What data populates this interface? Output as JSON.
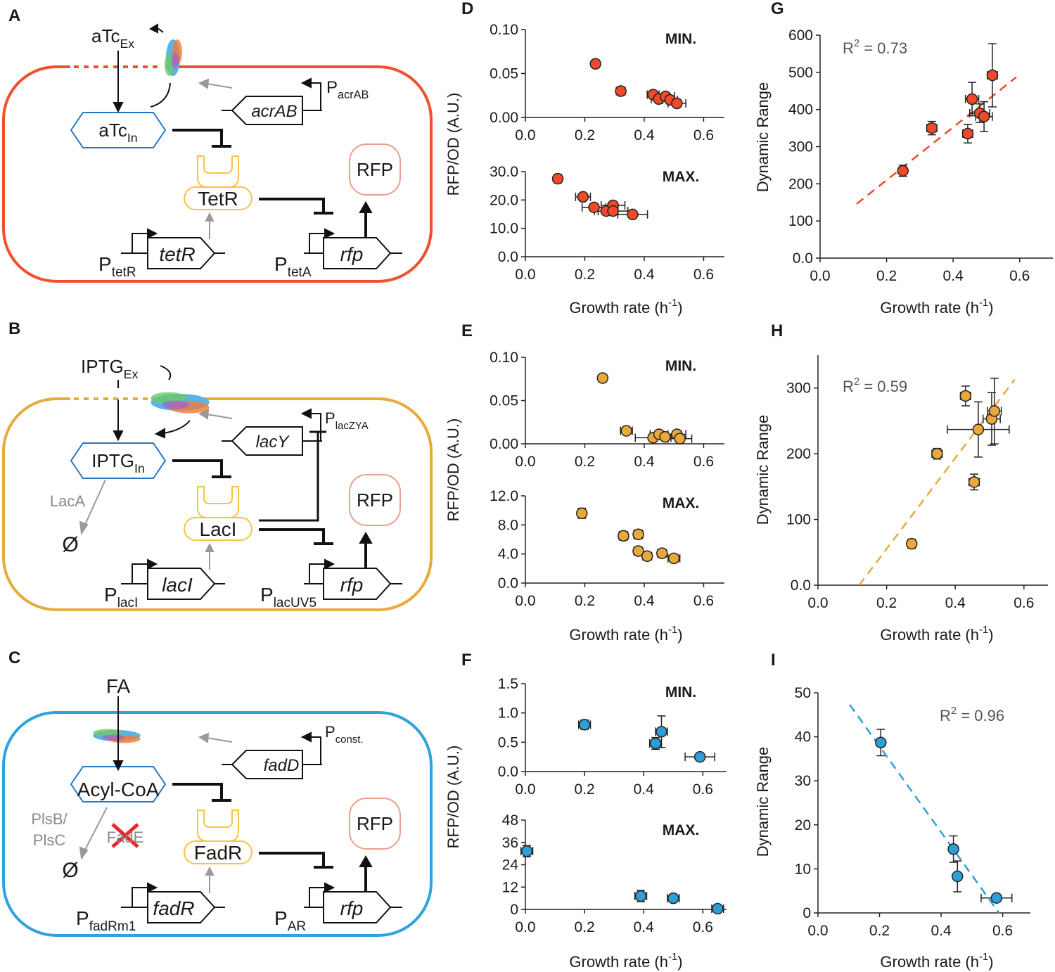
{
  "diagrams": [
    {
      "label": "A",
      "texts": [
        {
          "text": "aTc",
          "sub": "Ex"
        },
        {
          "text": "aTc",
          "sub": "In"
        },
        {
          "text": "TetR"
        },
        {
          "text": "RFP"
        },
        {
          "text": "P",
          "sub": "acrAB"
        },
        {
          "text": "acrAB"
        },
        {
          "text": "P",
          "sub": "tetR"
        },
        {
          "text": "tetR"
        },
        {
          "text": "P",
          "sub": "tetA"
        },
        {
          "text": "rfp"
        }
      ]
    },
    {
      "label": "B",
      "texts": [
        {
          "text": "IPTG",
          "sub": "Ex"
        },
        {
          "text": "IPTG",
          "sub": "In"
        },
        {
          "text": "LacI"
        },
        {
          "text": "RFP"
        },
        {
          "text": "P",
          "sub": "lacZYA"
        },
        {
          "text": "lacY"
        },
        {
          "text": "LacA"
        },
        {
          "text": "Ø"
        },
        {
          "text": "P",
          "sub": "lacI"
        },
        {
          "text": "lacI"
        },
        {
          "text": "P",
          "sub": "lacUV5"
        },
        {
          "text": "rfp"
        }
      ]
    },
    {
      "label": "C",
      "texts": [
        {
          "text": "FA"
        },
        {
          "text": "Acyl-CoA"
        },
        {
          "text": "FadR"
        },
        {
          "text": "RFP"
        },
        {
          "text": "P",
          "sub": "const."
        },
        {
          "text": "fadD"
        },
        {
          "text": "PlsB/"
        },
        {
          "text": "PlsC"
        },
        {
          "text": "FadE"
        },
        {
          "text": "Ø"
        },
        {
          "text": "P",
          "sub": "fadRm1"
        },
        {
          "text": "fadR"
        },
        {
          "text": "P",
          "sub": "AR"
        },
        {
          "text": "rfp"
        }
      ]
    }
  ],
  "chart_data": [
    {
      "type": "scatter",
      "panel_label": "D",
      "ylabel": "RFP/OD (A.U.)",
      "annotation": "MIN.",
      "color": "#f04a2a",
      "x": [
        0.236,
        0.321,
        0.43,
        0.449,
        0.472,
        0.487,
        0.51
      ],
      "values": [
        0.061,
        0.03,
        0.026,
        0.021,
        0.024,
        0.02,
        0.016
      ],
      "xerr": [
        0.012,
        0.015,
        0.02,
        0.025,
        0.03,
        0.025,
        0.03
      ],
      "yerr": [
        0.004,
        0.003,
        0.003,
        0.003,
        0.003,
        0.003,
        0.003
      ],
      "xlim": [
        0,
        0.67
      ],
      "ylim": [
        0,
        0.1
      ],
      "xticks": [
        {
          "value": 0,
          "label": "0.0"
        },
        0.2,
        0.4,
        0.6
      ],
      "yticks": [
        {
          "value": 0,
          "label": "0.00"
        },
        0.05,
        {
          "value": 0.1,
          "label": "0.10"
        }
      ]
    },
    {
      "type": "scatter",
      "annotation": "MAX.",
      "xlabel": {
        "text": "Growth rate (h",
        "sup": "-1",
        "tail": ")"
      },
      "color": "#f04a2a",
      "x": [
        0.109,
        0.194,
        0.231,
        0.272,
        0.295,
        0.295,
        0.361
      ],
      "values": [
        27.5,
        21.1,
        17.4,
        16.1,
        18.1,
        16.1,
        14.9
      ],
      "xerr": [
        0.012,
        0.025,
        0.04,
        0.04,
        0.04,
        0.05,
        0.05
      ],
      "yerr": [
        1.5,
        1.2,
        1.2,
        1.2,
        1.0,
        1.2,
        1.0
      ],
      "xlim": [
        0,
        0.67
      ],
      "ylim": [
        0,
        30
      ],
      "xticks": [
        {
          "value": 0,
          "label": "0.0"
        },
        0.2,
        0.4,
        0.6
      ],
      "yticks": [
        {
          "value": 0,
          "label": "0.0"
        },
        {
          "value": 10,
          "label": "10.0"
        },
        {
          "value": 20,
          "label": "20.0"
        },
        {
          "value": 30,
          "label": "30.0"
        }
      ]
    },
    {
      "type": "scatter",
      "panel_label": "E",
      "ylabel": "RFP/OD (A.U.)",
      "annotation": "MIN.",
      "color": "#e8a93a",
      "x": [
        0.26,
        0.34,
        0.43,
        0.45,
        0.47,
        0.51,
        0.52
      ],
      "values": [
        0.076,
        0.015,
        0.007,
        0.011,
        0.008,
        0.011,
        0.006
      ],
      "xerr": [
        0.012,
        0.02,
        0.06,
        0.03,
        0.04,
        0.03,
        0.04
      ],
      "yerr": [
        0.004,
        0.003,
        0.003,
        0.003,
        0.003,
        0.003,
        0.003
      ],
      "xlim": [
        0,
        0.67
      ],
      "ylim": [
        0,
        0.1
      ],
      "xticks": [
        {
          "value": 0,
          "label": "0.0"
        },
        0.2,
        0.4,
        0.6
      ],
      "yticks": [
        {
          "value": 0,
          "label": "0.00"
        },
        0.05,
        {
          "value": 0.1,
          "label": "0.10"
        }
      ]
    },
    {
      "type": "scatter",
      "annotation": "MAX.",
      "xlabel": {
        "text": "Growth rate (h",
        "sup": "-1",
        "tail": ")"
      },
      "color": "#e8a93a",
      "x": [
        0.19,
        0.33,
        0.38,
        0.38,
        0.41,
        0.46,
        0.5
      ],
      "values": [
        9.6,
        6.5,
        6.7,
        4.4,
        3.7,
        4.1,
        3.4
      ],
      "xerr": [
        0.012,
        0.015,
        0.015,
        0.015,
        0.015,
        0.015,
        0.02
      ],
      "yerr": [
        0.7,
        0.6,
        0.6,
        0.5,
        0.5,
        0.5,
        0.5
      ],
      "xlim": [
        0,
        0.67
      ],
      "ylim": [
        0,
        12
      ],
      "xticks": [
        {
          "value": 0,
          "label": "0.0"
        },
        0.2,
        0.4,
        0.6
      ],
      "yticks": [
        {
          "value": 0,
          "label": "0.0"
        },
        {
          "value": 4,
          "label": "4.0"
        },
        {
          "value": 8,
          "label": "8.0"
        },
        {
          "value": 12,
          "label": "12.0"
        }
      ]
    },
    {
      "type": "scatter",
      "panel_label": "F",
      "ylabel": "RFP/OD (A.U.)",
      "annotation": "MIN.",
      "color": "#2e9fd6",
      "x": [
        0.2,
        0.44,
        0.46,
        0.59
      ],
      "values": [
        0.8,
        0.48,
        0.68,
        0.25
      ],
      "xerr": [
        0.02,
        0.02,
        0.02,
        0.05
      ],
      "yerr": [
        0.08,
        0.1,
        0.27,
        0.03
      ],
      "xlim": [
        0,
        0.68
      ],
      "ylim": [
        0,
        1.5
      ],
      "xticks": [
        {
          "value": 0,
          "label": "0.0"
        },
        0.2,
        0.4,
        0.6
      ],
      "yticks": [
        {
          "value": 0,
          "label": "0.0"
        },
        0.5,
        {
          "value": 1,
          "label": "1.0"
        },
        1.5
      ]
    },
    {
      "type": "scatter",
      "annotation": "MAX.",
      "xlabel": {
        "text": "Growth rate (h",
        "sup": "-1",
        "tail": ")"
      },
      "color": "#2e9fd6",
      "x": [
        0.005,
        0.39,
        0.5,
        0.65
      ],
      "values": [
        31.3,
        7.2,
        6.0,
        0.4
      ],
      "xerr": [
        0.02,
        0.02,
        0.02,
        0.02
      ],
      "yerr": [
        3,
        3,
        2,
        1.5
      ],
      "xlim": [
        0,
        0.68
      ],
      "ylim": [
        0,
        48
      ],
      "xticks": [
        {
          "value": 0,
          "label": "0.0"
        },
        0.2,
        0.4,
        0.6
      ],
      "yticks": [
        0,
        12,
        24,
        36,
        48
      ]
    },
    {
      "type": "scatter",
      "panel_label": "G",
      "ylabel": "Dynamic Range",
      "annotation": {
        "text": "R",
        "sup": "2",
        "tail": " = 0.73"
      },
      "xlabel": {
        "text": "Growth rate (h",
        "sup": "-1",
        "tail": ")"
      },
      "color": "#f04a2a",
      "x": [
        0.249,
        0.336,
        0.444,
        0.457,
        0.48,
        0.493,
        0.518
      ],
      "values": [
        235,
        350,
        335,
        428,
        390,
        381,
        492
      ],
      "xerr": [
        0.01,
        0.015,
        0.015,
        0.02,
        0.03,
        0.025,
        0.015
      ],
      "yerr": [
        15,
        18,
        25,
        45,
        25,
        40,
        85
      ],
      "fit": {
        "x": [
          0.11,
          0.59
        ],
        "y": [
          146,
          487
        ]
      },
      "xlim": [
        0,
        0.7
      ],
      "ylim": [
        0,
        600
      ],
      "xticks": [
        {
          "value": 0,
          "label": "0.0"
        },
        0.2,
        0.4,
        0.6
      ],
      "yticks": [
        {
          "value": 0,
          "label": "0.0"
        },
        100,
        200,
        300,
        400,
        500,
        600
      ]
    },
    {
      "type": "scatter",
      "panel_label": "H",
      "ylabel": "Dynamic Range",
      "annotation": {
        "text": "R",
        "sup": "2",
        "tail": " = 0.59"
      },
      "xlabel": {
        "text": "Growth rate (h",
        "sup": "-1",
        "tail": ")"
      },
      "color": "#e8a93a",
      "x": [
        0.273,
        0.347,
        0.455,
        0.43,
        0.467,
        0.506,
        0.514
      ],
      "values": [
        63,
        200,
        157,
        288,
        237,
        253,
        265
      ],
      "xerr": [
        0.01,
        0.015,
        0.015,
        0.015,
        0.09,
        0.025,
        0.02
      ],
      "yerr": [
        7,
        8,
        12,
        15,
        42,
        40,
        50
      ],
      "fit": {
        "x": [
          0.12,
          0.573
        ],
        "y": [
          0,
          313
        ]
      },
      "xlim": [
        0,
        0.67
      ],
      "ylim": [
        0,
        350
      ],
      "xticks": [
        {
          "value": 0,
          "label": "0.0"
        },
        0.2,
        0.4,
        0.6
      ],
      "yticks": [
        {
          "value": 0,
          "label": "0.0"
        },
        100,
        200,
        300
      ]
    },
    {
      "type": "scatter",
      "panel_label": "I",
      "ylabel": "Dynamic Range",
      "annotation": {
        "text": "R",
        "sup": "2",
        "tail": " = 0.96"
      },
      "xlabel": {
        "text": "Growth rate (h",
        "sup": "-1",
        "tail": ")"
      },
      "color": "#2e9fd6",
      "x": [
        0.204,
        0.44,
        0.453,
        0.58
      ],
      "values": [
        38.7,
        14.5,
        8.3,
        3.4
      ],
      "xerr": [
        0.008,
        0.01,
        0.01,
        0.05
      ],
      "yerr": [
        3,
        3,
        3.5,
        0.6
      ],
      "fit": {
        "x": [
          0.103,
          0.588
        ],
        "y": [
          47.3,
          0
        ]
      },
      "xlim": [
        0,
        0.69
      ],
      "ylim": [
        0,
        50
      ],
      "xticks": [
        {
          "value": 0,
          "label": "0.0"
        },
        0.2,
        0.4,
        0.6
      ],
      "yticks": [
        0,
        10,
        20,
        30,
        40,
        50
      ]
    }
  ]
}
